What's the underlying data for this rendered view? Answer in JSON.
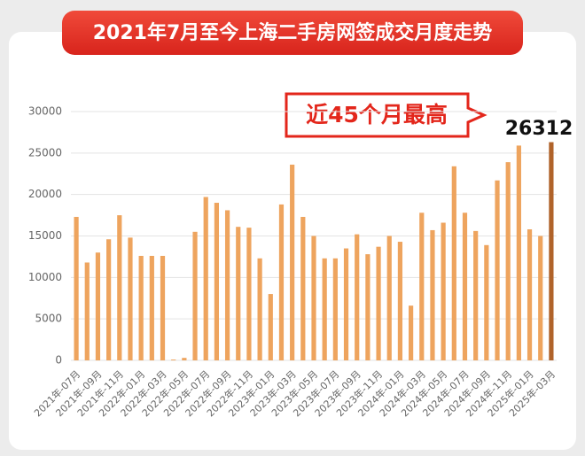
{
  "chart_data": {
    "type": "bar",
    "title": "2021年7月至今上海二手房网签成交月度走势",
    "annotation": "近45个月最高",
    "categories": [
      "2021年-07月",
      null,
      "2021年-09月",
      null,
      "2021年-11月",
      null,
      "2022年-01月",
      null,
      "2022年-03月",
      null,
      "2022年-05月",
      null,
      "2022年-07月",
      null,
      "2022年-09月",
      null,
      "2022年-11月",
      null,
      "2023年-01月",
      null,
      "2023年-03月",
      null,
      "2023年-05月",
      null,
      "2023年-07月",
      null,
      "2023年-09月",
      null,
      "2023年-11月",
      null,
      "2024年-01月",
      null,
      "2024年-03月",
      null,
      "2024年-05月",
      null,
      "2024年-07月",
      null,
      "2024年-09月",
      null,
      "2024年-11月",
      null,
      "2025年-01月",
      null,
      "2025年-03月"
    ],
    "values": [
      17300,
      11800,
      13000,
      14600,
      17500,
      14800,
      12600,
      12600,
      12600,
      100,
      300,
      15500,
      19700,
      19000,
      18100,
      16100,
      16000,
      12300,
      8000,
      18800,
      23600,
      17300,
      15000,
      12300,
      12300,
      13500,
      15200,
      12800,
      13700,
      15000,
      14300,
      6600,
      17800,
      15700,
      16600,
      23400,
      17800,
      15600,
      13900,
      21700,
      23900,
      25900,
      15800,
      15000,
      26312
    ],
    "colors": [
      "#eea45e",
      "#eea45e",
      "#eea45e",
      "#eea45e",
      "#eea45e",
      "#eea45e",
      "#eea45e",
      "#eea45e",
      "#eea45e",
      "#eea45e",
      "#eea45e",
      "#eea45e",
      "#eea45e",
      "#eea45e",
      "#eea45e",
      "#eea45e",
      "#eea45e",
      "#eea45e",
      "#eea45e",
      "#eea45e",
      "#eea45e",
      "#eea45e",
      "#eea45e",
      "#eea45e",
      "#eea45e",
      "#eea45e",
      "#eea45e",
      "#eea45e",
      "#eea45e",
      "#eea45e",
      "#eea45e",
      "#eea45e",
      "#eea45e",
      "#eea45e",
      "#eea45e",
      "#eea45e",
      "#eea45e",
      "#eea45e",
      "#eea45e",
      "#eea45e",
      "#eea45e",
      "#eea45e",
      "#eea45e",
      "#eea45e",
      "#b0632a"
    ],
    "ylim": [
      0,
      30000
    ],
    "yticks": [
      0,
      5000,
      10000,
      15000,
      20000,
      25000,
      30000
    ],
    "grid": true
  }
}
